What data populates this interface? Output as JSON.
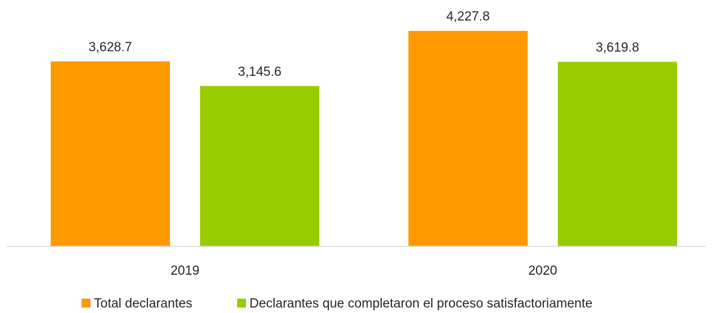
{
  "chart_data": {
    "type": "bar",
    "categories": [
      "2019",
      "2020"
    ],
    "series": [
      {
        "name": "Total declarantes",
        "values": [
          3628.7,
          4227.8
        ],
        "labels": [
          "3,628.7",
          "4,227.8"
        ],
        "color": "#FF9900"
      },
      {
        "name": "Declarantes que completaron el proceso satisfactoriamente",
        "values": [
          3145.6,
          3619.8
        ],
        "labels": [
          "3,145.6",
          "3,619.8"
        ],
        "color": "#99CC00"
      }
    ],
    "title": "",
    "xlabel": "",
    "ylabel": "",
    "ylim": [
      0,
      4700
    ],
    "grid": false,
    "legend_position": "bottom",
    "axis_color": "#D9D9D9"
  }
}
